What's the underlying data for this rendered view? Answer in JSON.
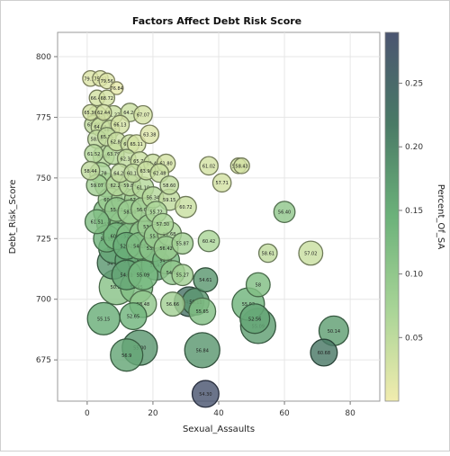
{
  "chart_data": {
    "type": "scatter",
    "title": "Factors Affect Debt Risk Score",
    "xlabel": "Sexual_Assaults",
    "ylabel": "Debt_Risk_Score",
    "colorbar_label": "Percent_Of_SA",
    "xlim": [
      -9,
      89
    ],
    "ylim": [
      658,
      810
    ],
    "xticks": [
      0,
      20,
      40,
      60,
      80
    ],
    "yticks": [
      675,
      700,
      725,
      750,
      775,
      800
    ],
    "cticks": [
      0.05,
      0.1,
      0.15,
      0.2,
      0.25
    ],
    "cticklabels": [
      "0.05",
      "0.10",
      "0.15",
      "0.20",
      "0.25"
    ],
    "clim": [
      0.0,
      0.29
    ],
    "grid": true,
    "colorscale": [
      "#f1ecae",
      "#a8d497",
      "#6cb27a",
      "#4a7a66",
      "#4b5570"
    ],
    "points": [
      {
        "x": 1,
        "y": 791,
        "c": 0.02,
        "s": 3,
        "label": "79.13"
      },
      {
        "x": 4,
        "y": 791,
        "c": 0.02,
        "s": 3,
        "label": "75.43"
      },
      {
        "x": 6,
        "y": 790,
        "c": 0.02,
        "s": 3,
        "label": "79.56"
      },
      {
        "x": 9,
        "y": 787,
        "c": 0.01,
        "s": 2,
        "label": "76.84"
      },
      {
        "x": 3,
        "y": 783,
        "c": 0.03,
        "s": 3,
        "label": "66.42"
      },
      {
        "x": 6,
        "y": 783,
        "c": 0.03,
        "s": 3,
        "label": "68.72"
      },
      {
        "x": 1,
        "y": 777,
        "c": 0.03,
        "s": 3,
        "label": "65.36"
      },
      {
        "x": 3,
        "y": 776,
        "c": 0.04,
        "s": 4,
        "label": "68.15"
      },
      {
        "x": 5,
        "y": 777,
        "c": 0.03,
        "s": 3,
        "label": "62.44"
      },
      {
        "x": 8,
        "y": 776,
        "c": 0.04,
        "s": 4,
        "label": "61.27"
      },
      {
        "x": 13,
        "y": 777,
        "c": 0.04,
        "s": 4,
        "label": "64.26"
      },
      {
        "x": 17,
        "y": 776,
        "c": 0.03,
        "s": 4,
        "label": "67.07"
      },
      {
        "x": 2,
        "y": 772,
        "c": 0.05,
        "s": 4,
        "label": "68.69"
      },
      {
        "x": 4,
        "y": 771,
        "c": 0.04,
        "s": 4,
        "label": "64.45"
      },
      {
        "x": 7,
        "y": 770,
        "c": 0.04,
        "s": 4,
        "label": "68.80"
      },
      {
        "x": 10,
        "y": 772,
        "c": 0.03,
        "s": 4,
        "label": "66.13"
      },
      {
        "x": 3,
        "y": 766,
        "c": 0.05,
        "s": 4,
        "label": "58.96"
      },
      {
        "x": 6,
        "y": 767,
        "c": 0.05,
        "s": 4,
        "label": "65.35"
      },
      {
        "x": 9,
        "y": 765,
        "c": 0.04,
        "s": 4,
        "label": "62.88"
      },
      {
        "x": 13,
        "y": 764,
        "c": 0.04,
        "s": 4,
        "label": "61.11"
      },
      {
        "x": 15,
        "y": 764,
        "c": 0.03,
        "s": 4,
        "label": "65.11"
      },
      {
        "x": 19,
        "y": 768,
        "c": 0.02,
        "s": 4,
        "label": "63.38"
      },
      {
        "x": 2,
        "y": 760,
        "c": 0.06,
        "s": 4,
        "label": "61.52"
      },
      {
        "x": 5,
        "y": 759,
        "c": 0.06,
        "s": 5,
        "label": "60.85"
      },
      {
        "x": 8,
        "y": 760,
        "c": 0.06,
        "s": 5,
        "label": "63.79"
      },
      {
        "x": 12,
        "y": 758,
        "c": 0.05,
        "s": 4,
        "label": "62.34"
      },
      {
        "x": 16,
        "y": 757,
        "c": 0.04,
        "s": 4,
        "label": "65.71"
      },
      {
        "x": 20,
        "y": 756,
        "c": 0.04,
        "s": 4,
        "label": "61.46"
      },
      {
        "x": 24,
        "y": 756,
        "c": 0.03,
        "s": 4,
        "label": "61.80"
      },
      {
        "x": 1,
        "y": 753,
        "c": 0.05,
        "s": 4,
        "label": "58.44"
      },
      {
        "x": 4,
        "y": 752,
        "c": 0.07,
        "s": 5,
        "label": "60.78"
      },
      {
        "x": 10,
        "y": 752,
        "c": 0.05,
        "s": 4,
        "label": "64.29"
      },
      {
        "x": 14,
        "y": 752,
        "c": 0.05,
        "s": 4,
        "label": "60.12"
      },
      {
        "x": 18,
        "y": 753,
        "c": 0.04,
        "s": 4,
        "label": "63.92"
      },
      {
        "x": 22,
        "y": 752,
        "c": 0.04,
        "s": 4,
        "label": "62.48"
      },
      {
        "x": 37,
        "y": 755,
        "c": 0.03,
        "s": 4,
        "label": "61.02"
      },
      {
        "x": 46,
        "y": 755,
        "c": 0.03,
        "s": 3,
        "label": "58.41"
      },
      {
        "x": 47,
        "y": 755,
        "c": 0.03,
        "s": 3,
        "label": "58.43"
      },
      {
        "x": 3,
        "y": 747,
        "c": 0.08,
        "s": 5,
        "label": "59.07"
      },
      {
        "x": 6,
        "y": 747,
        "c": 0.08,
        "s": 6,
        "label": "57.78"
      },
      {
        "x": 9,
        "y": 747,
        "c": 0.06,
        "s": 5,
        "label": "62.24"
      },
      {
        "x": 13,
        "y": 747,
        "c": 0.06,
        "s": 5,
        "label": "59.84"
      },
      {
        "x": 17,
        "y": 746,
        "c": 0.06,
        "s": 5,
        "label": "61.10"
      },
      {
        "x": 25,
        "y": 747,
        "c": 0.05,
        "s": 4,
        "label": "58.60"
      },
      {
        "x": 41,
        "y": 748,
        "c": 0.03,
        "s": 4,
        "label": "57.71"
      },
      {
        "x": 7,
        "y": 741,
        "c": 0.09,
        "s": 6,
        "label": "60.58"
      },
      {
        "x": 11,
        "y": 741,
        "c": 0.08,
        "s": 6,
        "label": "56.42"
      },
      {
        "x": 15,
        "y": 741,
        "c": 0.08,
        "s": 6,
        "label": "57.20"
      },
      {
        "x": 20,
        "y": 742,
        "c": 0.06,
        "s": 5,
        "label": "56.34"
      },
      {
        "x": 25,
        "y": 741,
        "c": 0.05,
        "s": 5,
        "label": "59.15"
      },
      {
        "x": 6,
        "y": 736,
        "c": 0.12,
        "s": 7,
        "label": "57.11"
      },
      {
        "x": 9,
        "y": 737,
        "c": 0.1,
        "s": 6,
        "label": "55.31"
      },
      {
        "x": 13,
        "y": 736,
        "c": 0.09,
        "s": 6,
        "label": "58.50"
      },
      {
        "x": 17,
        "y": 737,
        "c": 0.08,
        "s": 6,
        "label": "56.04"
      },
      {
        "x": 21,
        "y": 736,
        "c": 0.07,
        "s": 5,
        "label": "55.72"
      },
      {
        "x": 30,
        "y": 738,
        "c": 0.04,
        "s": 5,
        "label": "60.72"
      },
      {
        "x": 3,
        "y": 732,
        "c": 0.12,
        "s": 6,
        "label": "61.51"
      },
      {
        "x": 7,
        "y": 731,
        "c": 0.13,
        "s": 7,
        "label": "55.76"
      },
      {
        "x": 11,
        "y": 731,
        "c": 0.11,
        "s": 7,
        "label": "54.73"
      },
      {
        "x": 15,
        "y": 731,
        "c": 0.1,
        "s": 7,
        "label": "56.36"
      },
      {
        "x": 19,
        "y": 730,
        "c": 0.09,
        "s": 6,
        "label": "53.84"
      },
      {
        "x": 23,
        "y": 731,
        "c": 0.07,
        "s": 5,
        "label": "57.30"
      },
      {
        "x": 6,
        "y": 725,
        "c": 0.14,
        "s": 7,
        "label": "50.93"
      },
      {
        "x": 9,
        "y": 726,
        "c": 0.13,
        "s": 7,
        "label": "60.61"
      },
      {
        "x": 13,
        "y": 726,
        "c": 0.12,
        "s": 7,
        "label": "52.86"
      },
      {
        "x": 17,
        "y": 727,
        "c": 0.1,
        "s": 7,
        "label": "54.40"
      },
      {
        "x": 21,
        "y": 726,
        "c": 0.09,
        "s": 6,
        "label": "55.98"
      },
      {
        "x": 25,
        "y": 727,
        "c": 0.07,
        "s": 6,
        "label": "57.68"
      },
      {
        "x": 60,
        "y": 736,
        "c": 0.1,
        "s": 5,
        "label": "56.40"
      },
      {
        "x": 8,
        "y": 721,
        "c": 0.16,
        "s": 8,
        "label": "55.72"
      },
      {
        "x": 12,
        "y": 722,
        "c": 0.15,
        "s": 7,
        "label": "52.62"
      },
      {
        "x": 16,
        "y": 722,
        "c": 0.12,
        "s": 7,
        "label": "54.15"
      },
      {
        "x": 20,
        "y": 721,
        "c": 0.11,
        "s": 7,
        "label": "53.43"
      },
      {
        "x": 24,
        "y": 721,
        "c": 0.09,
        "s": 6,
        "label": "56.42"
      },
      {
        "x": 29,
        "y": 723,
        "c": 0.08,
        "s": 5,
        "label": "55.87"
      },
      {
        "x": 37,
        "y": 724,
        "c": 0.07,
        "s": 5,
        "label": "60.42"
      },
      {
        "x": 8,
        "y": 715,
        "c": 0.18,
        "s": 9,
        "label": "54.07"
      },
      {
        "x": 13,
        "y": 716,
        "c": 0.16,
        "s": 8,
        "label": "57.54"
      },
      {
        "x": 17,
        "y": 716,
        "c": 0.15,
        "s": 8,
        "label": "55.63"
      },
      {
        "x": 21,
        "y": 714,
        "c": 0.17,
        "s": 8,
        "label": "56.47"
      },
      {
        "x": 24,
        "y": 716,
        "c": 0.13,
        "s": 7,
        "label": "54.93"
      },
      {
        "x": 55,
        "y": 719,
        "c": 0.05,
        "s": 4,
        "label": "58.61"
      },
      {
        "x": 68,
        "y": 719,
        "c": 0.04,
        "s": 6,
        "label": "57.02"
      },
      {
        "x": 12,
        "y": 710,
        "c": 0.16,
        "s": 8,
        "label": "54.31"
      },
      {
        "x": 17,
        "y": 710,
        "c": 0.13,
        "s": 8,
        "label": "55.09"
      },
      {
        "x": 26,
        "y": 711,
        "c": 0.1,
        "s": 6,
        "label": "54.53"
      },
      {
        "x": 29,
        "y": 710,
        "c": 0.08,
        "s": 5,
        "label": "55.27"
      },
      {
        "x": 9,
        "y": 705,
        "c": 0.11,
        "s": 10,
        "label": "50.90"
      },
      {
        "x": 15,
        "y": 705,
        "c": 0.12,
        "s": 9,
        "label": "56.45"
      },
      {
        "x": 36,
        "y": 708,
        "c": 0.18,
        "s": 6,
        "label": "54.61"
      },
      {
        "x": 52,
        "y": 706,
        "c": 0.12,
        "s": 6,
        "label": "58"
      },
      {
        "x": 17,
        "y": 698,
        "c": 0.1,
        "s": 7,
        "label": "58.48"
      },
      {
        "x": 26,
        "y": 698,
        "c": 0.08,
        "s": 6,
        "label": "56.66"
      },
      {
        "x": 31,
        "y": 699,
        "c": 0.23,
        "s": 8,
        "label": "54.06"
      },
      {
        "x": 33,
        "y": 699,
        "c": 0.18,
        "s": 7,
        "label": "56.11"
      },
      {
        "x": 35,
        "y": 695,
        "c": 0.12,
        "s": 7,
        "label": "55.65"
      },
      {
        "x": 49,
        "y": 698,
        "c": 0.14,
        "s": 9,
        "label": "55.93"
      },
      {
        "x": 5,
        "y": 692,
        "c": 0.15,
        "s": 9,
        "label": "55.15"
      },
      {
        "x": 14,
        "y": 693,
        "c": 0.14,
        "s": 7,
        "label": "52.65"
      },
      {
        "x": 51,
        "y": 692,
        "c": 0.16,
        "s": 8,
        "label": "52.56"
      },
      {
        "x": 52,
        "y": 689,
        "c": 0.17,
        "s": 10,
        "label": "55.09"
      },
      {
        "x": 75,
        "y": 687,
        "c": 0.17,
        "s": 8,
        "label": "50.14"
      },
      {
        "x": 12,
        "y": 677,
        "c": 0.16,
        "s": 9,
        "label": "56.9"
      },
      {
        "x": 16,
        "y": 680,
        "c": 0.18,
        "s": 10,
        "label": "55.00"
      },
      {
        "x": 35,
        "y": 679,
        "c": 0.18,
        "s": 10,
        "label": "56.84"
      },
      {
        "x": 72,
        "y": 678,
        "c": 0.22,
        "s": 7,
        "label": "60.68"
      },
      {
        "x": 36,
        "y": 661,
        "c": 0.29,
        "s": 7,
        "label": "54.30"
      }
    ]
  }
}
